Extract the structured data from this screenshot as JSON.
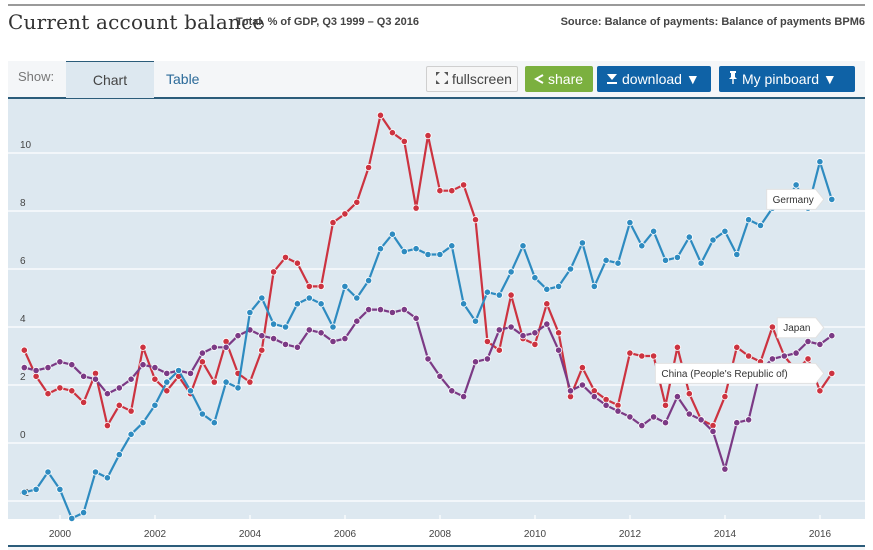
{
  "header": {
    "title": "Current account balance",
    "subtitle": "Total, % of GDP, Q3 1999 – Q3 2016",
    "source": "Source: Balance of payments: Balance of payments BPM6"
  },
  "toolbar": {
    "show_label": "Show:",
    "tabs": [
      {
        "label": "Chart",
        "active": true
      },
      {
        "label": "Table",
        "active": false
      }
    ],
    "fullscreen_label": "fullscreen",
    "fullscreen_icon": "expand-arrows-icon",
    "share_label": "share",
    "share_icon": "share-icon",
    "download_label": "download ▼",
    "download_icon": "download-icon",
    "pinboard_label": "My pinboard ▼",
    "pinboard_icon": "pin-icon"
  },
  "colors": {
    "germany": "#2e8bc0",
    "china": "#cc3340",
    "japan": "#7b3a85",
    "plot_bg": "#dde8f0",
    "grid": "#ffffff",
    "share_green": "#7bb03f",
    "button_blue": "#0f62a6",
    "accent_line": "#2b5c7a"
  },
  "chart_data": {
    "type": "line",
    "title": "Current account balance",
    "subtitle": "Total, % of GDP, Q3 1999 – Q3 2016",
    "xlabel": "",
    "ylabel": "",
    "x_start": "1999-Q3",
    "x_end": "2016-Q3",
    "x_ticks": [
      "2000",
      "2002",
      "2004",
      "2006",
      "2008",
      "2010",
      "2012",
      "2014",
      "2016"
    ],
    "y_ticks": [
      "-2",
      "0",
      "2",
      "4",
      "6",
      "8",
      "10"
    ],
    "ylim": [
      -2.8,
      11.5
    ],
    "grid": true,
    "legend": "inline-labels-right",
    "series": [
      {
        "name": "Germany",
        "label": "Germany",
        "color": "#2e8bc0",
        "values": [
          -1.7,
          -1.6,
          -1.0,
          -1.6,
          -2.6,
          -2.4,
          -1.0,
          -1.2,
          -0.4,
          0.3,
          0.7,
          1.3,
          2.1,
          2.5,
          1.8,
          1.0,
          0.7,
          2.1,
          1.9,
          4.5,
          5.0,
          4.1,
          4.0,
          4.8,
          5.0,
          4.8,
          4.0,
          5.4,
          5.0,
          5.6,
          6.7,
          7.2,
          6.6,
          6.7,
          6.5,
          6.5,
          6.8,
          4.8,
          4.2,
          5.2,
          5.1,
          5.9,
          6.8,
          5.7,
          5.3,
          5.4,
          6.0,
          6.9,
          5.4,
          6.3,
          6.2,
          7.6,
          6.8,
          7.3,
          6.3,
          6.4,
          7.1,
          6.2,
          7.0,
          7.3,
          6.5,
          7.7,
          7.5,
          8.1,
          8.2,
          8.9,
          8.1,
          9.7,
          8.4
        ]
      },
      {
        "name": "China (People's Republic of)",
        "label": "China (People's Republic of)",
        "color": "#cc3340",
        "values": [
          3.2,
          2.3,
          1.7,
          1.9,
          1.8,
          1.4,
          2.4,
          0.6,
          1.3,
          1.1,
          3.3,
          2.2,
          1.8,
          2.3,
          1.7,
          2.8,
          2.1,
          3.5,
          2.4,
          2.1,
          3.2,
          5.9,
          6.4,
          6.2,
          5.4,
          5.4,
          7.6,
          7.9,
          8.3,
          9.5,
          11.3,
          10.7,
          10.4,
          8.1,
          10.6,
          8.7,
          8.7,
          8.9,
          7.7,
          3.5,
          3.2,
          5.1,
          3.6,
          3.4,
          4.8,
          3.8,
          1.6,
          2.6,
          1.8,
          1.5,
          1.3,
          3.1,
          3.0,
          3.0,
          1.3,
          3.3,
          1.7,
          0.8,
          0.6,
          1.6,
          3.3,
          3.0,
          2.8,
          4.0,
          3.0,
          2.5,
          2.9,
          1.8,
          2.4
        ]
      },
      {
        "name": "Japan",
        "label": "Japan",
        "color": "#7b3a85",
        "values": [
          2.6,
          2.5,
          2.6,
          2.8,
          2.7,
          2.3,
          2.2,
          1.7,
          1.9,
          2.2,
          2.7,
          2.6,
          2.4,
          2.5,
          2.4,
          3.1,
          3.3,
          3.3,
          3.7,
          3.9,
          3.7,
          3.6,
          3.4,
          3.3,
          3.9,
          3.8,
          3.5,
          3.6,
          4.2,
          4.6,
          4.6,
          4.5,
          4.6,
          4.3,
          2.9,
          2.3,
          1.8,
          1.6,
          2.8,
          2.9,
          3.9,
          4.0,
          3.7,
          3.8,
          4.1,
          3.2,
          1.8,
          2.0,
          1.6,
          1.3,
          1.1,
          0.9,
          0.6,
          0.9,
          0.7,
          1.6,
          1.0,
          0.8,
          0.4,
          -0.9,
          0.7,
          0.8,
          2.5,
          2.9,
          3.0,
          3.1,
          3.5,
          3.4,
          3.7
        ]
      }
    ]
  }
}
